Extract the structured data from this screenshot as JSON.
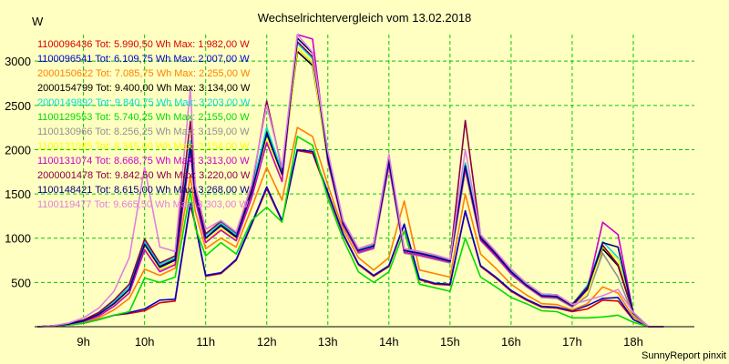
{
  "chart_data": {
    "type": "line",
    "title": "Wechselrichtervergleich vom 13.02.2018",
    "unit_label": "W",
    "footer": "SunnyReport pinxit",
    "xlabel": "",
    "ylabel": "",
    "x_ticks": [
      "9h",
      "10h",
      "11h",
      "12h",
      "13h",
      "14h",
      "15h",
      "16h",
      "17h",
      "18h"
    ],
    "y_ticks": [
      500,
      1000,
      1500,
      2000,
      2500,
      3000
    ],
    "xlim": [
      8.2,
      19.0
    ],
    "ylim": [
      0,
      3300
    ],
    "grid": true,
    "legend_position": "top-left",
    "x": [
      8.25,
      8.5,
      8.75,
      9.0,
      9.25,
      9.5,
      9.75,
      10.0,
      10.25,
      10.5,
      10.75,
      10.83,
      11.0,
      11.25,
      11.5,
      11.75,
      12.0,
      12.25,
      12.5,
      12.75,
      13.0,
      13.25,
      13.5,
      13.75,
      14.0,
      14.25,
      14.5,
      14.75,
      15.0,
      15.25,
      15.5,
      15.75,
      16.0,
      16.25,
      16.5,
      16.75,
      17.0,
      17.25,
      17.5,
      17.75,
      18.0,
      18.25,
      18.5
    ],
    "series": [
      {
        "name": "1100096436",
        "legend": "1100096436 Tot: 5.990,50 Wh Max: 1.982,00 W",
        "color": "#d80000",
        "values": [
          0,
          5,
          20,
          40,
          80,
          130,
          150,
          180,
          270,
          290,
          1380,
          1150,
          570,
          600,
          750,
          1150,
          1560,
          1190,
          1990,
          1960,
          1500,
          1040,
          700,
          570,
          680,
          1150,
          530,
          480,
          470,
          1300,
          680,
          550,
          400,
          300,
          220,
          210,
          170,
          200,
          300,
          290,
          80,
          0,
          0
        ]
      },
      {
        "name": "1100096541",
        "legend": "1100096541 Tot: 6.109,75 Wh Max: 2.007,00 W",
        "color": "#0000cc",
        "values": [
          0,
          5,
          20,
          40,
          80,
          130,
          160,
          200,
          300,
          310,
          1400,
          1160,
          580,
          610,
          760,
          1160,
          1580,
          1200,
          2000,
          1980,
          1520,
          1050,
          710,
          580,
          690,
          1160,
          540,
          490,
          480,
          1310,
          690,
          560,
          410,
          310,
          230,
          220,
          180,
          240,
          320,
          330,
          80,
          0,
          0
        ]
      },
      {
        "name": "2000150622",
        "legend": "2000150622 Tot: 7.085,75 Wh Max: 2.255,00 W",
        "color": "#ff8000",
        "values": [
          0,
          5,
          25,
          55,
          100,
          190,
          320,
          650,
          580,
          660,
          1700,
          1300,
          880,
          1000,
          900,
          1340,
          1800,
          1430,
          2250,
          2150,
          1600,
          1100,
          780,
          640,
          780,
          1420,
          640,
          600,
          560,
          1500,
          820,
          660,
          480,
          360,
          260,
          250,
          190,
          260,
          450,
          380,
          110,
          0,
          0
        ]
      },
      {
        "name": "2000154799",
        "legend": "2000154799 Tot: 9.400,00 Wh Max: 3.134,00 W",
        "color": "#000000",
        "values": [
          0,
          10,
          30,
          70,
          140,
          260,
          420,
          930,
          680,
          760,
          2050,
          1500,
          1000,
          1150,
          1020,
          1520,
          2200,
          1730,
          3110,
          2950,
          1900,
          1170,
          860,
          920,
          1870,
          860,
          830,
          790,
          740,
          1820,
          1010,
          820,
          620,
          470,
          350,
          340,
          240,
          420,
          880,
          690,
          150,
          0,
          0
        ]
      },
      {
        "name": "2000149892",
        "legend": "2000149892 Tot: 9.840,75 Wh Max: 3.203,00 W",
        "color": "#00dcdc",
        "values": [
          0,
          10,
          35,
          75,
          150,
          280,
          450,
          960,
          700,
          780,
          2100,
          1530,
          1030,
          1170,
          1040,
          1550,
          2250,
          1760,
          3200,
          3030,
          1950,
          1190,
          870,
          930,
          1900,
          870,
          840,
          800,
          750,
          1850,
          1020,
          830,
          640,
          480,
          360,
          350,
          250,
          470,
          960,
          780,
          160,
          0,
          0
        ]
      },
      {
        "name": "1100129553",
        "legend": "1100129553 Tot: 5.740,25 Wh Max: 2.155,00 W",
        "color": "#00dc00",
        "values": [
          0,
          5,
          20,
          40,
          80,
          130,
          170,
          550,
          500,
          560,
          1530,
          1120,
          800,
          950,
          820,
          1200,
          1350,
          1180,
          2150,
          2050,
          1450,
          990,
          620,
          500,
          620,
          1080,
          480,
          440,
          400,
          1000,
          560,
          450,
          330,
          260,
          180,
          170,
          100,
          100,
          110,
          130,
          50,
          0,
          0
        ]
      },
      {
        "name": "1100130966",
        "legend": "1100130966 Tot: 8.256,25 Wh Max: 3.159,00 W",
        "color": "#909090",
        "values": [
          0,
          10,
          30,
          60,
          130,
          240,
          390,
          870,
          640,
          720,
          1980,
          1440,
          960,
          1100,
          980,
          1460,
          2100,
          1650,
          3150,
          2980,
          1850,
          1140,
          830,
          880,
          1800,
          830,
          800,
          760,
          720,
          1750,
          970,
          790,
          590,
          450,
          330,
          320,
          220,
          350,
          830,
          560,
          130,
          0,
          0
        ]
      },
      {
        "name": "1100131085",
        "legend": "1100131085 Tot: 8.345,00 Wh Max: 3.154,00 W",
        "color": "#ffff00",
        "values": [
          0,
          10,
          30,
          60,
          130,
          240,
          390,
          880,
          650,
          720,
          1990,
          1450,
          970,
          1110,
          990,
          1470,
          2120,
          1660,
          3150,
          2990,
          1860,
          1150,
          840,
          890,
          1820,
          840,
          810,
          770,
          730,
          1760,
          980,
          800,
          600,
          460,
          340,
          330,
          230,
          380,
          900,
          760,
          140,
          0,
          0
        ]
      },
      {
        "name": "1100131074",
        "legend": "1100131074 Tot: 8.668,75 Wh Max: 3.313,00 W",
        "color": "#cc00cc",
        "values": [
          0,
          10,
          30,
          60,
          120,
          230,
          380,
          870,
          620,
          700,
          1980,
          1430,
          950,
          1090,
          970,
          1450,
          2080,
          1640,
          3300,
          3250,
          1870,
          1150,
          840,
          890,
          1830,
          840,
          810,
          770,
          730,
          1780,
          980,
          800,
          600,
          460,
          340,
          330,
          230,
          420,
          1180,
          1040,
          150,
          0,
          0
        ]
      },
      {
        "name": "2000001478",
        "legend": "2000001478 Tot: 9.842,50 Wh Max: 3.220,00 W",
        "color": "#880044",
        "values": [
          0,
          10,
          35,
          75,
          160,
          300,
          480,
          990,
          720,
          800,
          2320,
          1570,
          1050,
          1190,
          1060,
          1560,
          2550,
          1780,
          3220,
          3050,
          1960,
          1200,
          880,
          940,
          1930,
          880,
          850,
          810,
          760,
          2330,
          1030,
          840,
          650,
          490,
          370,
          360,
          250,
          450,
          920,
          700,
          160,
          0,
          0
        ]
      },
      {
        "name": "1100148421",
        "legend": "1100148421 Tot: 8.615,00 Wh Max: 3.268,00 W",
        "color": "#000080",
        "values": [
          0,
          10,
          30,
          65,
          140,
          260,
          420,
          930,
          670,
          750,
          2050,
          1500,
          1000,
          1140,
          1010,
          1510,
          2180,
          1720,
          3260,
          3090,
          1900,
          1170,
          860,
          910,
          1870,
          860,
          830,
          790,
          740,
          1820,
          1000,
          820,
          620,
          470,
          350,
          340,
          240,
          430,
          950,
          900,
          150,
          0,
          0
        ]
      },
      {
        "name": "1100119477",
        "legend": "1100119477 Tot: 9.665,50 Wh Max: 3.303,00 W",
        "color": "#e080e0",
        "values": [
          0,
          10,
          40,
          100,
          210,
          400,
          780,
          1800,
          900,
          850,
          2700,
          1600,
          1100,
          1200,
          1070,
          1600,
          2500,
          1800,
          3300,
          3100,
          1980,
          1200,
          880,
          940,
          1950,
          880,
          850,
          810,
          760,
          2000,
          1040,
          850,
          650,
          490,
          370,
          360,
          250,
          300,
          350,
          420,
          160,
          0,
          0
        ]
      }
    ]
  }
}
